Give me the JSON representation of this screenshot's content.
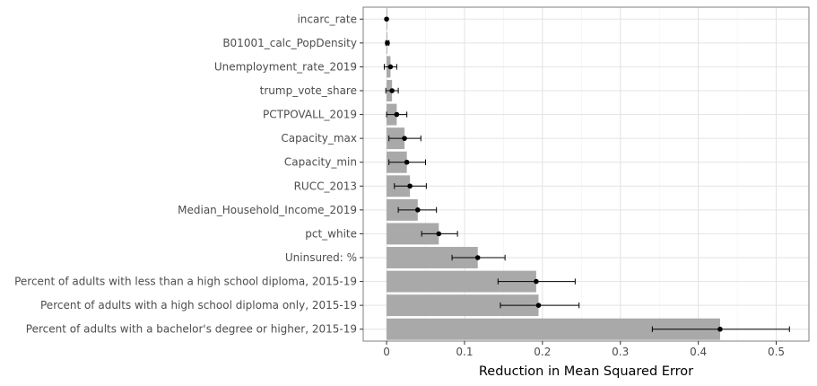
{
  "chart_data": {
    "type": "bar",
    "orientation": "horizontal",
    "title": "",
    "xlabel": "Reduction in Mean Squared Error",
    "ylabel": "",
    "xlim": [
      -0.03,
      0.542
    ],
    "xticks": [
      0,
      0.1,
      0.2,
      0.3,
      0.4,
      0.5
    ],
    "xtick_labels": [
      "0",
      "0.1",
      "0.2",
      "0.3",
      "0.4",
      "0.5"
    ],
    "grid": true,
    "legend": "none",
    "categories": [
      "incarc_rate",
      "B01001_calc_PopDensity",
      "Unemployment_rate_2019",
      "trump_vote_share",
      "PCTPOVALL_2019",
      "Capacity_max",
      "Capacity_min",
      "RUCC_2013",
      "Median_Household_Income_2019",
      "pct_white",
      "Uninsured: %",
      "Percent of adults with less than a high school diploma, 2015-19",
      "Percent of adults with a high school diploma only, 2015-19",
      "Percent of adults with a bachelor's degree or higher, 2015-19"
    ],
    "values": [
      0.0,
      0.001,
      0.005,
      0.007,
      0.013,
      0.023,
      0.026,
      0.03,
      0.04,
      0.067,
      0.117,
      0.192,
      0.195,
      0.428
    ],
    "points": [
      0.0,
      0.001,
      0.005,
      0.007,
      0.013,
      0.023,
      0.026,
      0.03,
      0.04,
      0.067,
      0.117,
      0.192,
      0.195,
      0.428
    ],
    "error_low": [
      0.0,
      -0.001,
      -0.003,
      -0.001,
      0.0,
      0.003,
      0.003,
      0.01,
      0.015,
      0.045,
      0.084,
      0.143,
      0.146,
      0.341
    ],
    "error_high": [
      0.0,
      0.003,
      0.013,
      0.015,
      0.026,
      0.044,
      0.05,
      0.051,
      0.064,
      0.091,
      0.152,
      0.242,
      0.247,
      0.517
    ],
    "colors": {
      "bar": "#a9a9a9",
      "point": "#000000",
      "grid_major": "#e3e3e3",
      "grid_minor": "#f1f1f1",
      "panel_border": "#7f7f7f",
      "tick_text": "#4d4d4d"
    }
  }
}
